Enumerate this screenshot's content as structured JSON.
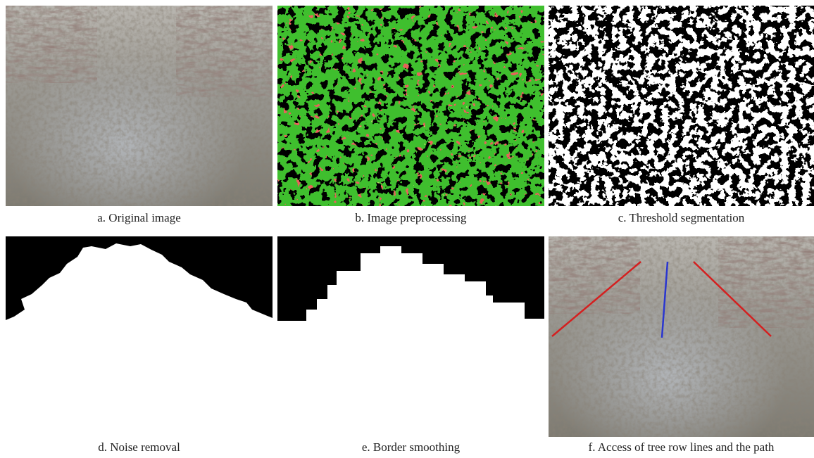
{
  "panels": [
    {
      "caption": "a. Original image"
    },
    {
      "caption": "b. Image preprocessing"
    },
    {
      "caption": "c. Threshold segmentation"
    },
    {
      "caption": "d. Noise removal"
    },
    {
      "caption": "e. Border smoothing"
    },
    {
      "caption": "f. Access of tree row lines and the path"
    }
  ]
}
